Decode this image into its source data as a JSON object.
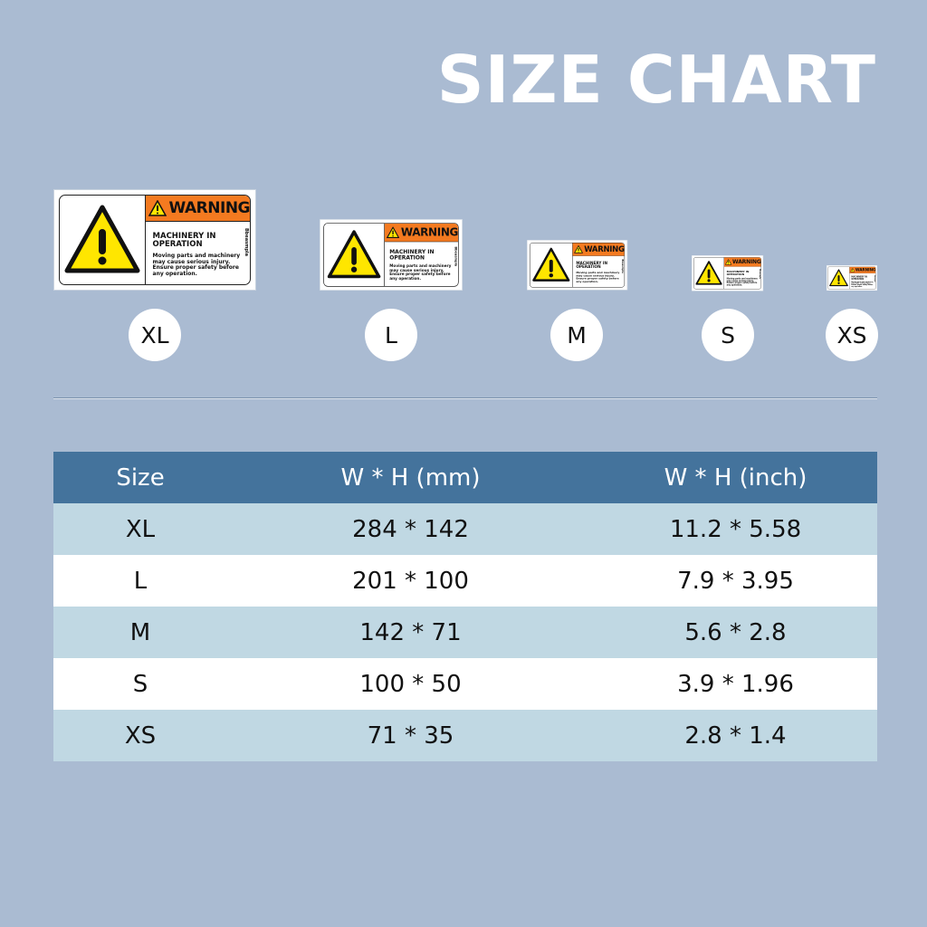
{
  "title": "SIZE CHART",
  "sign": {
    "warning": "WARNING",
    "heading": "MACHINERY IN OPERATION",
    "body": "Moving parts and machinery may cause serious injury. Ensure proper safety before any operation.",
    "side_text": "Bbeasmpla",
    "orange": "#f47a20",
    "yellow": "#ffe600"
  },
  "sizes": [
    "XL",
    "L",
    "M",
    "S",
    "XS"
  ],
  "table": {
    "headers": [
      "Size",
      "W * H (mm)",
      "W * H (inch)"
    ],
    "rows": [
      [
        "XL",
        "284 * 142",
        "11.2 * 5.58"
      ],
      [
        "L",
        "201 * 100",
        "7.9 * 3.95"
      ],
      [
        "M",
        "142 * 71",
        "5.6 * 2.8"
      ],
      [
        "S",
        "100 * 50",
        "3.9 * 1.96"
      ],
      [
        "XS",
        "71 * 35",
        "2.8 * 1.4"
      ]
    ]
  }
}
